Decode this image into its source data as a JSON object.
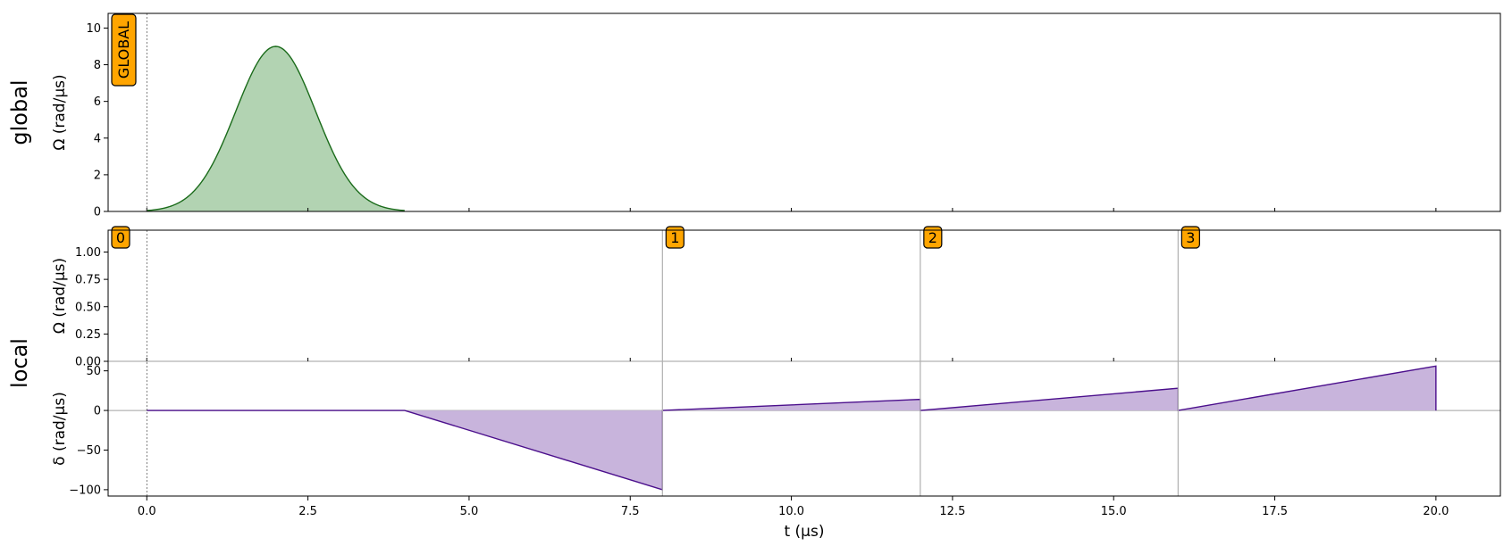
{
  "chart_data": {
    "type": "area",
    "x_axis": {
      "label": "t (μs)",
      "range": [
        -0.6,
        21
      ],
      "ticks": [
        0.0,
        2.5,
        5.0,
        7.5,
        10.0,
        12.5,
        15.0,
        17.5,
        20.0
      ],
      "tick_labels": [
        "0.0",
        "2.5",
        "5.0",
        "7.5",
        "10.0",
        "12.5",
        "15.0",
        "17.5",
        "20.0"
      ]
    },
    "groups": [
      {
        "label": "global",
        "panels": [
          {
            "id": "global-omega",
            "ylabel": "Ω (rad/μs)",
            "ylim": [
              0,
              10.8
            ],
            "yticks": [
              0,
              2,
              4,
              6,
              8,
              10
            ],
            "ytick_labels": [
              "0",
              "2",
              "4",
              "6",
              "8",
              "10"
            ],
            "series": [
              {
                "kind": "gaussian",
                "color": "#1a6b1a",
                "fill": "#b2d3b2",
                "amplitude": 9.0,
                "center": 2.0,
                "sigma": 0.62,
                "x_start": 0.0,
                "x_end": 4.0
              }
            ],
            "markers": [
              {
                "x": 0.0,
                "label": "GLOBAL",
                "vertical": true
              }
            ]
          }
        ]
      },
      {
        "label": "local",
        "panels": [
          {
            "id": "local-omega",
            "ylabel": "Ω (rad/μs)",
            "ylim": [
              0,
              1.2
            ],
            "yticks": [
              0.0,
              0.25,
              0.5,
              0.75,
              1.0
            ],
            "ytick_labels": [
              "0.00",
              "0.25",
              "0.50",
              "0.75",
              "1.00"
            ],
            "series": [],
            "markers": [
              {
                "x": 0.0,
                "label": "0"
              },
              {
                "x": 8.0,
                "label": "1"
              },
              {
                "x": 12.0,
                "label": "2"
              },
              {
                "x": 16.0,
                "label": "3"
              }
            ]
          },
          {
            "id": "local-delta",
            "ylabel": "δ (rad/μs)",
            "ylim": [
              -108,
              62
            ],
            "yticks": [
              -100,
              -50,
              0,
              50
            ],
            "ytick_labels": [
              "−100",
              "−50",
              "0",
              "50"
            ],
            "series": [
              {
                "kind": "polyline",
                "color": "#4b0f8c",
                "fill": "#c8b4dc",
                "points": [
                  [
                    0,
                    0
                  ],
                  [
                    4,
                    0
                  ],
                  [
                    8,
                    -100
                  ],
                  [
                    8,
                    0
                  ],
                  [
                    12,
                    14
                  ],
                  [
                    12,
                    0
                  ],
                  [
                    16,
                    28
                  ],
                  [
                    16,
                    0
                  ],
                  [
                    20,
                    56
                  ],
                  [
                    20,
                    0
                  ]
                ]
              }
            ],
            "markers": []
          }
        ]
      }
    ],
    "marker_style": {
      "fill": "#ffa500",
      "stroke": "#000000"
    },
    "grid": false
  }
}
